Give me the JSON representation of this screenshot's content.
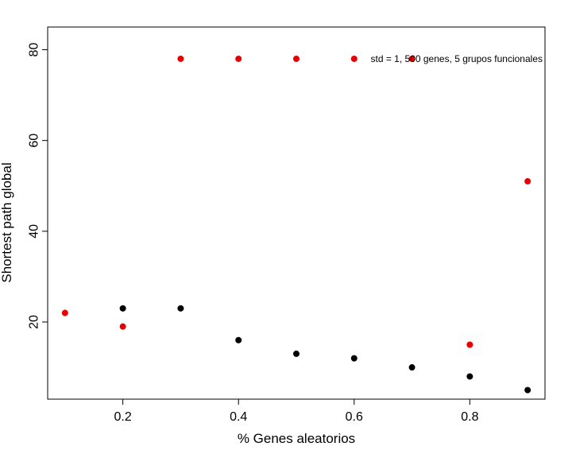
{
  "chart_data": {
    "type": "scatter",
    "title": "",
    "xlabel": "% Genes aleatorios",
    "ylabel": "Shortest path global",
    "annotation": "std = 1, 500 genes, 5 grupos funcionales",
    "xlim": [
      0.07,
      0.93
    ],
    "ylim": [
      3,
      85
    ],
    "x_ticks": [
      0.2,
      0.4,
      0.6,
      0.8
    ],
    "x_tick_labels": [
      "0.2",
      "0.4",
      "0.6",
      "0.8"
    ],
    "y_ticks": [
      20,
      40,
      60,
      80
    ],
    "y_tick_labels": [
      "20",
      "40",
      "60",
      "80"
    ],
    "grid": false,
    "series": [
      {
        "color": "#000000",
        "points": [
          {
            "x": 0.2,
            "y": 23
          },
          {
            "x": 0.3,
            "y": 23
          },
          {
            "x": 0.4,
            "y": 16
          },
          {
            "x": 0.5,
            "y": 13
          },
          {
            "x": 0.6,
            "y": 12
          },
          {
            "x": 0.7,
            "y": 10
          },
          {
            "x": 0.8,
            "y": 8
          },
          {
            "x": 0.9,
            "y": 5
          }
        ]
      },
      {
        "color": "#e60000",
        "points": [
          {
            "x": 0.1,
            "y": 22
          },
          {
            "x": 0.2,
            "y": 19
          },
          {
            "x": 0.3,
            "y": 78
          },
          {
            "x": 0.4,
            "y": 78
          },
          {
            "x": 0.5,
            "y": 78
          },
          {
            "x": 0.6,
            "y": 78
          },
          {
            "x": 0.7,
            "y": 78
          },
          {
            "x": 0.8,
            "y": 15
          },
          {
            "x": 0.9,
            "y": 51
          }
        ]
      }
    ]
  }
}
